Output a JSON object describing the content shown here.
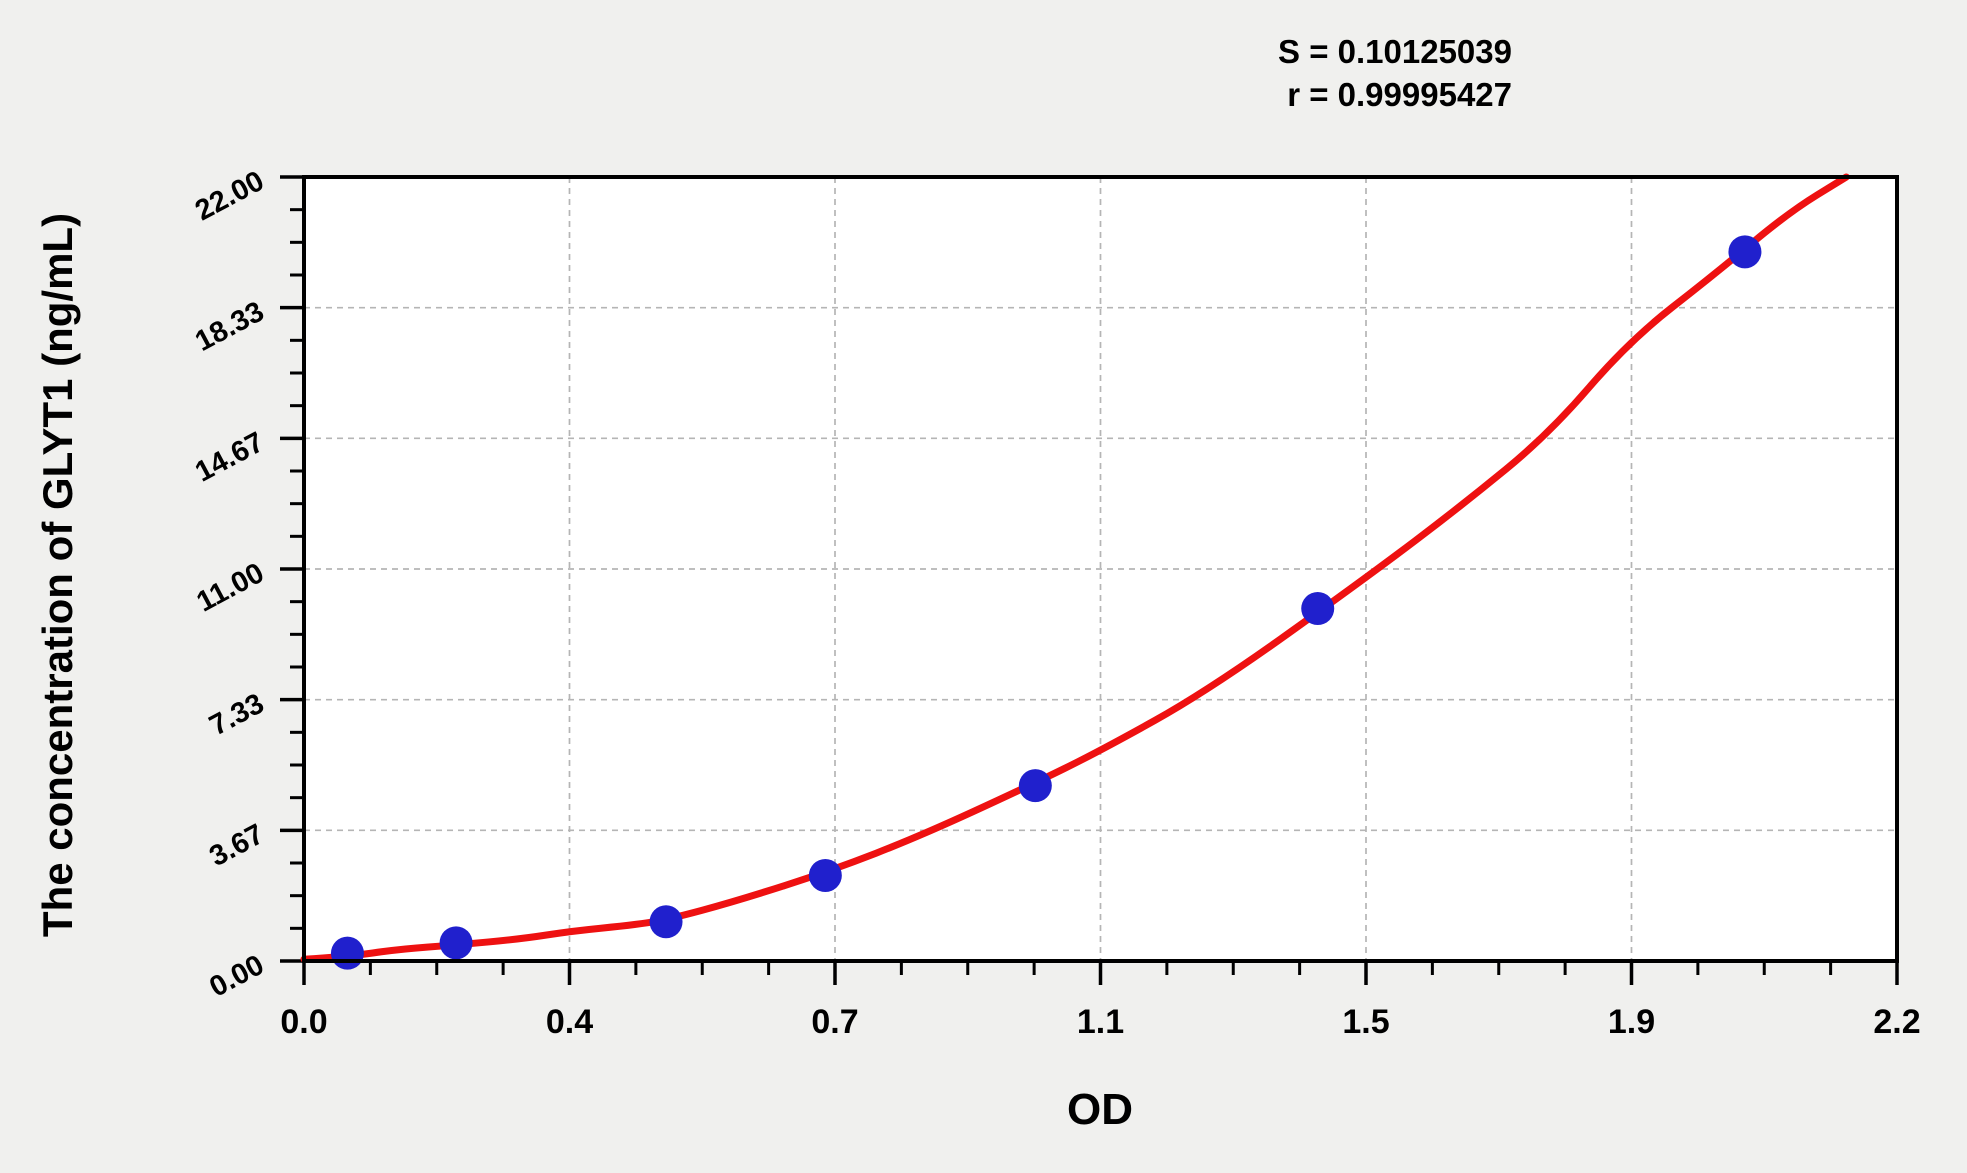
{
  "page": {
    "background_color": "#f0f0ee",
    "plot_background_color": "#ffffff"
  },
  "chart_data": {
    "type": "scatter",
    "title": "",
    "xlabel": "OD",
    "ylabel": "The concentration of GLYT1 (ng/mL)",
    "xlim": [
      0.0,
      2.2
    ],
    "ylim": [
      0.0,
      22.0
    ],
    "x_tick_labels": [
      "0.0",
      "0.4",
      "0.7",
      "1.1",
      "1.5",
      "1.9",
      "2.2"
    ],
    "y_tick_labels": [
      "0.00",
      "3.67",
      "7.33",
      "11.00",
      "14.67",
      "18.33",
      "22.00"
    ],
    "minor_ticks_per_major_interval": 3,
    "grid": {
      "show": true,
      "style": "dashed",
      "color": "#b5b5b5",
      "on": "major-ticks"
    },
    "legend_position": "none",
    "stats": {
      "s_text": "S = 0.10125039",
      "r_text": "r = 0.99995427"
    },
    "series": [
      {
        "name": "standard data points",
        "type": "scatter",
        "color": "#2020cd",
        "marker": "circle",
        "x": [
          0.06,
          0.21,
          0.5,
          0.72,
          1.01,
          1.4,
          1.99
        ],
        "y": [
          0.22,
          0.51,
          1.1,
          2.4,
          4.92,
          9.89,
          19.9
        ]
      },
      {
        "name": "fitted standard curve",
        "type": "line",
        "color": "#ee1111",
        "x": [
          0.0,
          0.06,
          0.13,
          0.21,
          0.3,
          0.37,
          0.45,
          0.5,
          0.6,
          0.73,
          0.85,
          1.0,
          1.1,
          1.25,
          1.47,
          1.6,
          1.72,
          1.83,
          1.95,
          2.05,
          2.13
        ],
        "y": [
          0.05,
          0.12,
          0.33,
          0.45,
          0.62,
          0.84,
          1.0,
          1.15,
          1.7,
          2.55,
          3.5,
          4.9,
          5.9,
          7.6,
          10.8,
          12.8,
          14.8,
          17.4,
          19.3,
          21.0,
          22.0
        ]
      }
    ]
  }
}
